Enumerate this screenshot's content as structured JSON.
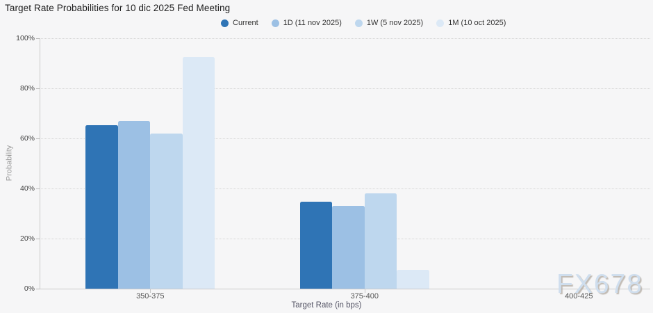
{
  "watermark": {
    "text": "FX678"
  },
  "colors": {
    "background": "#f6f6f7",
    "gridline": "#d4d4d4",
    "axis": "#c9c9c9",
    "accent_current": "#2f74b5",
    "accent_1d": "#9cc0e4",
    "accent_1w": "#bed7ee",
    "accent_1m": "#dce9f6"
  },
  "chart_data": {
    "type": "bar",
    "title": "Target Rate Probabilities for 10 dic 2025 Fed Meeting",
    "categories": [
      "350-375",
      "375-400",
      "400-425"
    ],
    "series": [
      {
        "name": "Current",
        "color": "#2f74b5",
        "values": [
          65.3,
          34.7,
          0
        ]
      },
      {
        "name": "1D (11 nov 2025)",
        "color": "#9cc0e4",
        "values": [
          66.9,
          33.1,
          0
        ]
      },
      {
        "name": "1W (5 nov 2025)",
        "color": "#bed7ee",
        "values": [
          62.0,
          38.0,
          0
        ]
      },
      {
        "name": "1M (10 oct 2025)",
        "color": "#dce9f6",
        "values": [
          92.6,
          7.4,
          0
        ]
      }
    ],
    "xlabel": "Target Rate (in bps)",
    "ylabel": "Probability",
    "ylim": [
      0,
      100
    ],
    "ytick_step": 20,
    "ytick_labels": [
      "0%",
      "20%",
      "40%",
      "60%",
      "80%",
      "100%"
    ],
    "grid": "horizontal-dotted",
    "legend_position": "top"
  }
}
